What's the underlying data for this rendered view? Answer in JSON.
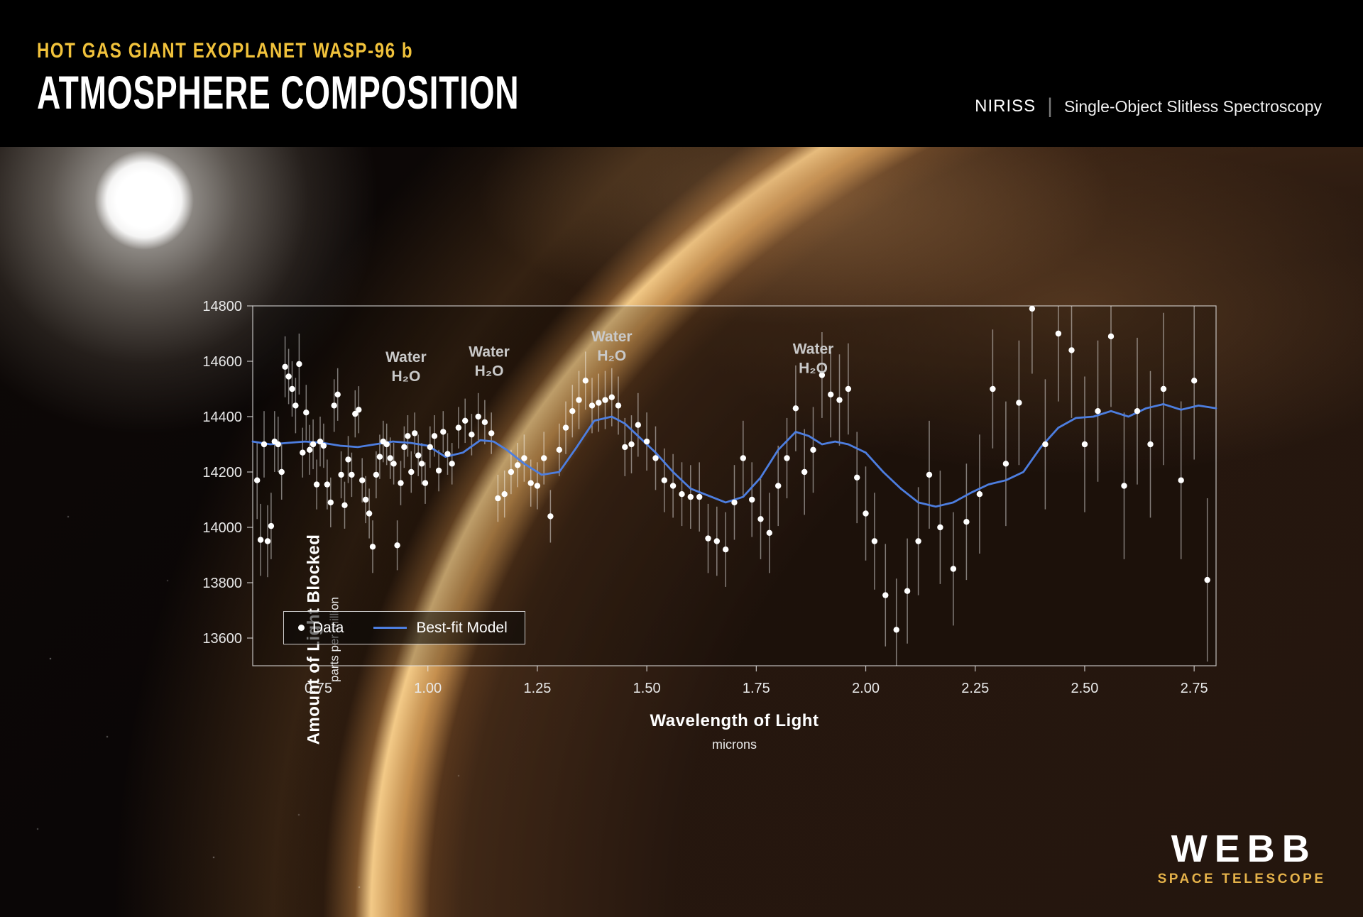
{
  "header": {
    "eyebrow": "HOT GAS GIANT EXOPLANET WASP-96 b",
    "title": "ATMOSPHERE COMPOSITION",
    "instrument": "NIRISS",
    "separator": "|",
    "mode": "Single-Object Slitless Spectroscopy"
  },
  "footer": {
    "logo_line1": "WEBB",
    "logo_line2": "SPACE TELESCOPE"
  },
  "chart_data": {
    "type": "scatter",
    "title": "",
    "xlabel": "Wavelength of Light",
    "xlabel_sub": "microns",
    "ylabel": "Amount of Light Blocked",
    "ylabel_sub": "parts per million",
    "xlim": [
      0.6,
      2.8
    ],
    "ylim": [
      13500,
      14800
    ],
    "x_ticks": [
      0.75,
      1.0,
      1.25,
      1.5,
      1.75,
      2.0,
      2.25,
      2.5,
      2.75
    ],
    "x_tick_labels": [
      "0.75",
      "1.00",
      "1.25",
      "1.50",
      "1.75",
      "2.00",
      "2.25",
      "2.50",
      "2.75"
    ],
    "y_ticks": [
      14800,
      14600,
      14400,
      14200,
      14000,
      13800,
      13600
    ],
    "grid": false,
    "legend": {
      "data_label": "Data",
      "model_label": "Best-fit Model",
      "position": "lower-left"
    },
    "colors": {
      "model_line": "#4d7ee0",
      "points": "#ffffff",
      "error_bars": "rgba(255,255,255,0.45)"
    },
    "annotations": [
      {
        "x": 0.95,
        "y": 14615,
        "line1": "Water",
        "line2": "H₂O"
      },
      {
        "x": 1.14,
        "y": 14635,
        "line1": "Water",
        "line2": "H₂O"
      },
      {
        "x": 1.42,
        "y": 14690,
        "line1": "Water",
        "line2": "H₂O"
      },
      {
        "x": 1.88,
        "y": 14645,
        "line1": "Water",
        "line2": "H₂O"
      }
    ],
    "series": [
      {
        "name": "Data",
        "type": "scatter_error",
        "points": [
          [
            0.61,
            14170,
            140
          ],
          [
            0.618,
            13955,
            130
          ],
          [
            0.626,
            14300,
            120
          ],
          [
            0.634,
            13950,
            130
          ],
          [
            0.642,
            14005,
            120
          ],
          [
            0.65,
            14310,
            110
          ],
          [
            0.658,
            14300,
            100
          ],
          [
            0.666,
            14200,
            100
          ],
          [
            0.674,
            14580,
            110
          ],
          [
            0.682,
            14545,
            100
          ],
          [
            0.69,
            14500,
            100
          ],
          [
            0.698,
            14440,
            100
          ],
          [
            0.706,
            14590,
            110
          ],
          [
            0.714,
            14270,
            90
          ],
          [
            0.722,
            14415,
            100
          ],
          [
            0.73,
            14280,
            90
          ],
          [
            0.738,
            14300,
            90
          ],
          [
            0.746,
            14155,
            90
          ],
          [
            0.754,
            14310,
            90
          ],
          [
            0.762,
            14295,
            80
          ],
          [
            0.77,
            14155,
            90
          ],
          [
            0.778,
            14090,
            90
          ],
          [
            0.786,
            14440,
            95
          ],
          [
            0.794,
            14480,
            95
          ],
          [
            0.802,
            14190,
            85
          ],
          [
            0.81,
            14080,
            85
          ],
          [
            0.818,
            14245,
            85
          ],
          [
            0.826,
            14190,
            80
          ],
          [
            0.834,
            14410,
            85
          ],
          [
            0.842,
            14425,
            85
          ],
          [
            0.85,
            14170,
            80
          ],
          [
            0.858,
            14100,
            85
          ],
          [
            0.866,
            14050,
            90
          ],
          [
            0.874,
            13930,
            95
          ],
          [
            0.882,
            14190,
            85
          ],
          [
            0.89,
            14255,
            80
          ],
          [
            0.898,
            14310,
            75
          ],
          [
            0.906,
            14300,
            75
          ],
          [
            0.914,
            14250,
            75
          ],
          [
            0.922,
            14230,
            75
          ],
          [
            0.93,
            13935,
            90
          ],
          [
            0.938,
            14160,
            80
          ],
          [
            0.946,
            14290,
            75
          ],
          [
            0.954,
            14330,
            75
          ],
          [
            0.962,
            14200,
            75
          ],
          [
            0.97,
            14340,
            75
          ],
          [
            0.978,
            14260,
            75
          ],
          [
            0.986,
            14230,
            75
          ],
          [
            0.994,
            14160,
            75
          ],
          [
            1.005,
            14290,
            75
          ],
          [
            1.015,
            14330,
            75
          ],
          [
            1.025,
            14205,
            75
          ],
          [
            1.035,
            14345,
            75
          ],
          [
            1.045,
            14265,
            75
          ],
          [
            1.055,
            14230,
            75
          ],
          [
            1.07,
            14360,
            75
          ],
          [
            1.085,
            14385,
            80
          ],
          [
            1.1,
            14335,
            75
          ],
          [
            1.115,
            14400,
            85
          ],
          [
            1.13,
            14380,
            80
          ],
          [
            1.145,
            14340,
            75
          ],
          [
            1.16,
            14105,
            85
          ],
          [
            1.175,
            14120,
            85
          ],
          [
            1.19,
            14200,
            80
          ],
          [
            1.205,
            14225,
            80
          ],
          [
            1.22,
            14250,
            85
          ],
          [
            1.235,
            14160,
            85
          ],
          [
            1.25,
            14150,
            85
          ],
          [
            1.265,
            14250,
            95
          ],
          [
            1.28,
            14040,
            95
          ],
          [
            1.3,
            14280,
            95
          ],
          [
            1.315,
            14360,
            95
          ],
          [
            1.33,
            14420,
            95
          ],
          [
            1.345,
            14460,
            105
          ],
          [
            1.36,
            14530,
            105
          ],
          [
            1.375,
            14440,
            100
          ],
          [
            1.39,
            14450,
            105
          ],
          [
            1.405,
            14460,
            105
          ],
          [
            1.42,
            14470,
            105
          ],
          [
            1.435,
            14440,
            105
          ],
          [
            1.45,
            14290,
            105
          ],
          [
            1.465,
            14300,
            105
          ],
          [
            1.48,
            14370,
            115
          ],
          [
            1.5,
            14310,
            105
          ],
          [
            1.52,
            14250,
            115
          ],
          [
            1.54,
            14170,
            115
          ],
          [
            1.56,
            14150,
            115
          ],
          [
            1.58,
            14120,
            115
          ],
          [
            1.6,
            14110,
            115
          ],
          [
            1.62,
            14110,
            125
          ],
          [
            1.64,
            13960,
            125
          ],
          [
            1.66,
            13950,
            125
          ],
          [
            1.68,
            13920,
            135
          ],
          [
            1.7,
            14090,
            135
          ],
          [
            1.72,
            14250,
            135
          ],
          [
            1.74,
            14100,
            135
          ],
          [
            1.76,
            14030,
            145
          ],
          [
            1.78,
            13980,
            145
          ],
          [
            1.8,
            14150,
            145
          ],
          [
            1.82,
            14250,
            145
          ],
          [
            1.84,
            14430,
            155
          ],
          [
            1.86,
            14200,
            155
          ],
          [
            1.88,
            14280,
            155
          ],
          [
            1.9,
            14550,
            155
          ],
          [
            1.92,
            14480,
            155
          ],
          [
            1.94,
            14460,
            165
          ],
          [
            1.96,
            14500,
            165
          ],
          [
            1.98,
            14180,
            165
          ],
          [
            2.0,
            14050,
            170
          ],
          [
            2.02,
            13950,
            175
          ],
          [
            2.045,
            13755,
            185
          ],
          [
            2.07,
            13630,
            185
          ],
          [
            2.095,
            13770,
            190
          ],
          [
            2.12,
            13950,
            195
          ],
          [
            2.145,
            14190,
            195
          ],
          [
            2.17,
            14000,
            205
          ],
          [
            2.2,
            13850,
            205
          ],
          [
            2.23,
            14020,
            210
          ],
          [
            2.26,
            14120,
            215
          ],
          [
            2.29,
            14500,
            215
          ],
          [
            2.32,
            14230,
            225
          ],
          [
            2.35,
            14450,
            225
          ],
          [
            2.38,
            14790,
            235
          ],
          [
            2.41,
            14300,
            235
          ],
          [
            2.44,
            14700,
            245
          ],
          [
            2.47,
            14640,
            245
          ],
          [
            2.5,
            14300,
            245
          ],
          [
            2.53,
            14420,
            255
          ],
          [
            2.56,
            14690,
            255
          ],
          [
            2.59,
            14150,
            265
          ],
          [
            2.62,
            14420,
            265
          ],
          [
            2.65,
            14300,
            265
          ],
          [
            2.68,
            14500,
            275
          ],
          [
            2.72,
            14170,
            285
          ],
          [
            2.75,
            14530,
            285
          ],
          [
            2.78,
            13810,
            295
          ]
        ]
      },
      {
        "name": "Best-fit Model",
        "type": "line",
        "points": [
          [
            0.6,
            14310
          ],
          [
            0.64,
            14300
          ],
          [
            0.68,
            14305
          ],
          [
            0.72,
            14310
          ],
          [
            0.76,
            14305
          ],
          [
            0.8,
            14295
          ],
          [
            0.84,
            14290
          ],
          [
            0.88,
            14300
          ],
          [
            0.92,
            14310
          ],
          [
            0.96,
            14305
          ],
          [
            1.0,
            14295
          ],
          [
            1.04,
            14255
          ],
          [
            1.08,
            14270
          ],
          [
            1.12,
            14315
          ],
          [
            1.15,
            14310
          ],
          [
            1.18,
            14280
          ],
          [
            1.22,
            14230
          ],
          [
            1.26,
            14190
          ],
          [
            1.3,
            14200
          ],
          [
            1.34,
            14290
          ],
          [
            1.38,
            14385
          ],
          [
            1.42,
            14400
          ],
          [
            1.45,
            14375
          ],
          [
            1.48,
            14330
          ],
          [
            1.52,
            14270
          ],
          [
            1.56,
            14200
          ],
          [
            1.6,
            14140
          ],
          [
            1.64,
            14115
          ],
          [
            1.68,
            14090
          ],
          [
            1.72,
            14110
          ],
          [
            1.76,
            14180
          ],
          [
            1.8,
            14280
          ],
          [
            1.84,
            14345
          ],
          [
            1.87,
            14330
          ],
          [
            1.9,
            14300
          ],
          [
            1.93,
            14310
          ],
          [
            1.96,
            14300
          ],
          [
            2.0,
            14270
          ],
          [
            2.04,
            14200
          ],
          [
            2.08,
            14140
          ],
          [
            2.12,
            14090
          ],
          [
            2.16,
            14075
          ],
          [
            2.2,
            14090
          ],
          [
            2.24,
            14125
          ],
          [
            2.28,
            14155
          ],
          [
            2.32,
            14170
          ],
          [
            2.36,
            14200
          ],
          [
            2.4,
            14290
          ],
          [
            2.44,
            14360
          ],
          [
            2.48,
            14395
          ],
          [
            2.52,
            14400
          ],
          [
            2.56,
            14420
          ],
          [
            2.6,
            14400
          ],
          [
            2.64,
            14430
          ],
          [
            2.68,
            14445
          ],
          [
            2.72,
            14425
          ],
          [
            2.76,
            14440
          ],
          [
            2.8,
            14430
          ]
        ]
      }
    ]
  }
}
